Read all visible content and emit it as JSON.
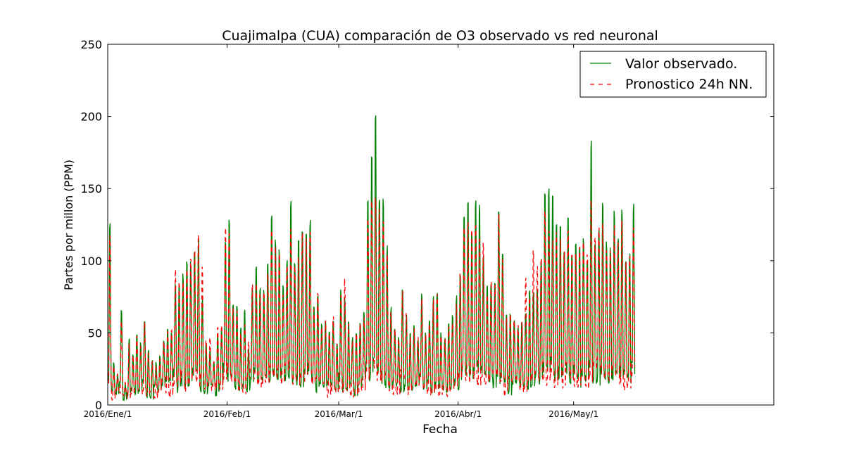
{
  "chart_data": {
    "type": "line",
    "title": "Cuajimalpa (CUA) comparación de O3 observado vs red neuronal",
    "xlabel": "Fecha",
    "ylabel": "Partes por millon (PPM)",
    "ylim": [
      0,
      250
    ],
    "y_ticks": [
      0,
      50,
      100,
      150,
      200,
      250
    ],
    "x_range_days": [
      0,
      173
    ],
    "x_ticks": [
      {
        "day": 0,
        "label": "2016/Ene/1"
      },
      {
        "day": 31,
        "label": "2016/Feb/1"
      },
      {
        "day": 60,
        "label": "2016/Mar/1"
      },
      {
        "day": 91,
        "label": "2016/Abr/1"
      },
      {
        "day": 121,
        "label": "2016/May/1"
      }
    ],
    "grid": false,
    "legend_position": "top-right",
    "series": [
      {
        "name": "Valor observado.",
        "color": "#008000",
        "style": "solid",
        "daily_peaks": [
          133,
          30,
          22,
          68,
          15,
          48,
          37,
          52,
          45,
          63,
          40,
          32,
          30,
          35,
          48,
          55,
          52,
          90,
          92,
          95,
          105,
          102,
          108,
          118,
          78,
          45,
          40,
          30,
          52,
          55,
          118,
          136,
          72,
          72,
          55,
          68,
          40,
          85,
          100,
          85,
          82,
          104,
          136,
          120,
          112,
          88,
          108,
          147,
          105,
          118,
          133,
          125,
          133,
          70,
          80,
          58,
          62,
          55,
          62,
          45,
          82,
          78,
          60,
          48,
          52,
          60,
          69,
          148,
          181,
          210,
          147,
          151,
          115,
          70,
          55,
          48,
          85,
          65,
          52,
          58,
          48,
          79,
          52,
          60,
          78,
          82,
          52,
          48,
          58,
          65,
          78,
          98,
          138,
          152,
          128,
          150,
          145,
          110,
          86,
          90,
          88,
          143,
          109,
          65,
          66,
          62,
          55,
          60,
          68,
          82,
          80,
          85,
          110,
          160,
          155,
          156,
          130,
          128,
          112,
          140,
          108,
          115,
          118,
          122,
          110,
          192,
          122,
          132,
          150,
          118,
          115,
          142,
          120,
          141,
          105,
          110,
          146
        ]
      },
      {
        "name": "Pronostico 24h NN.",
        "color": "#ff0000",
        "style": "dashed",
        "daily_peaks": [
          128,
          28,
          22,
          60,
          16,
          45,
          35,
          50,
          42,
          60,
          38,
          32,
          30,
          33,
          46,
          52,
          55,
          99,
          88,
          90,
          100,
          110,
          112,
          127,
          101,
          48,
          50,
          32,
          55,
          58,
          128,
          130,
          70,
          68,
          52,
          60,
          45,
          90,
          88,
          82,
          80,
          100,
          132,
          115,
          108,
          82,
          104,
          130,
          100,
          110,
          128,
          120,
          125,
          68,
          84,
          55,
          60,
          52,
          65,
          45,
          80,
          91,
          60,
          48,
          52,
          58,
          66,
          140,
          150,
          150,
          140,
          135,
          110,
          68,
          55,
          48,
          85,
          65,
          50,
          56,
          48,
          75,
          50,
          58,
          76,
          80,
          50,
          48,
          56,
          62,
          76,
          95,
          130,
          135,
          125,
          132,
          126,
          118,
          80,
          88,
          85,
          140,
          105,
          66,
          66,
          62,
          58,
          62,
          95,
          80,
          110,
          100,
          110,
          145,
          125,
          120,
          125,
          120,
          115,
          128,
          110,
          112,
          115,
          118,
          112,
          148,
          120,
          130,
          135,
          115,
          112,
          130,
          118,
          132,
          102,
          108,
          130
        ]
      }
    ]
  }
}
